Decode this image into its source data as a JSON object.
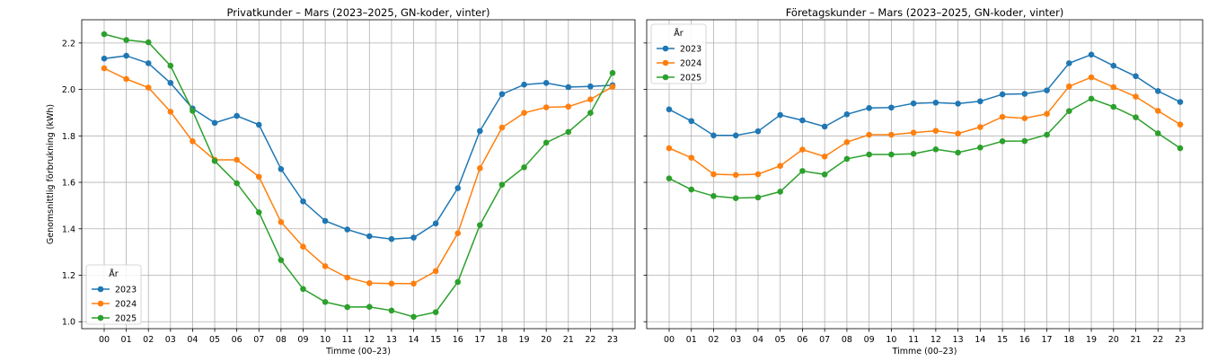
{
  "chart_data": [
    {
      "type": "line",
      "title": "Privatkunder – Mars (2023–2025, GN-koder, vinter)",
      "xlabel": "Timme (00–23)",
      "ylabel": "Genomsnittlig förbrukning (kWh)",
      "categories": [
        "00",
        "01",
        "02",
        "03",
        "04",
        "05",
        "06",
        "07",
        "08",
        "09",
        "10",
        "11",
        "12",
        "13",
        "14",
        "15",
        "16",
        "17",
        "18",
        "19",
        "20",
        "21",
        "22",
        "23"
      ],
      "yticks": [
        "1.0",
        "1.2",
        "1.4",
        "1.6",
        "1.8",
        "2.0",
        "2.2"
      ],
      "ylim": [
        0.97,
        2.3
      ],
      "grid": true,
      "legend": {
        "title": "År",
        "placement": "lower-left"
      },
      "series": [
        {
          "name": "2023",
          "color": "#1f77b4",
          "values": [
            2.133,
            2.145,
            2.113,
            2.028,
            1.918,
            1.856,
            1.886,
            1.848,
            1.657,
            1.518,
            1.434,
            1.397,
            1.368,
            1.356,
            1.362,
            1.423,
            1.575,
            1.821,
            1.98,
            2.021,
            2.028,
            2.01,
            2.013,
            2.018
          ]
        },
        {
          "name": "2024",
          "color": "#ff7f0e",
          "values": [
            2.091,
            2.045,
            2.008,
            1.904,
            1.777,
            1.697,
            1.697,
            1.624,
            1.429,
            1.323,
            1.239,
            1.19,
            1.166,
            1.164,
            1.164,
            1.218,
            1.381,
            1.661,
            1.836,
            1.899,
            1.923,
            1.926,
            1.957,
            2.012
          ]
        },
        {
          "name": "2025",
          "color": "#2ca02c",
          "values": [
            2.238,
            2.213,
            2.203,
            2.102,
            1.908,
            1.692,
            1.596,
            1.471,
            1.265,
            1.141,
            1.085,
            1.063,
            1.064,
            1.048,
            1.021,
            1.041,
            1.171,
            1.416,
            1.59,
            1.665,
            1.771,
            1.817,
            1.899,
            2.071
          ]
        }
      ]
    },
    {
      "type": "line",
      "title": "Företagskunder – Mars (2023–2025, GN-koder, vinter)",
      "xlabel": "Timme (00–23)",
      "ylabel": "",
      "categories": [
        "00",
        "01",
        "02",
        "03",
        "04",
        "05",
        "06",
        "07",
        "08",
        "09",
        "10",
        "11",
        "12",
        "13",
        "14",
        "15",
        "16",
        "17",
        "18",
        "19",
        "20",
        "21",
        "22",
        "23"
      ],
      "ylim": [
        0.97,
        2.3
      ],
      "grid": true,
      "legend": {
        "title": "År",
        "placement": "top-left"
      },
      "series": [
        {
          "name": "2023",
          "color": "#1f77b4",
          "values": [
            1.914,
            1.864,
            1.802,
            1.802,
            1.82,
            1.89,
            1.867,
            1.84,
            1.893,
            1.92,
            1.922,
            1.94,
            1.943,
            1.939,
            1.949,
            1.979,
            1.981,
            1.996,
            2.113,
            2.15,
            2.102,
            2.057,
            1.993,
            1.946
          ]
        },
        {
          "name": "2024",
          "color": "#ff7f0e",
          "values": [
            1.747,
            1.706,
            1.635,
            1.632,
            1.635,
            1.671,
            1.741,
            1.711,
            1.773,
            1.805,
            1.805,
            1.814,
            1.822,
            1.81,
            1.838,
            1.882,
            1.876,
            1.895,
            2.013,
            2.052,
            2.01,
            1.969,
            1.908,
            1.849
          ]
        },
        {
          "name": "2025",
          "color": "#2ca02c",
          "values": [
            1.617,
            1.569,
            1.541,
            1.532,
            1.535,
            1.56,
            1.649,
            1.634,
            1.701,
            1.72,
            1.72,
            1.723,
            1.742,
            1.728,
            1.75,
            1.777,
            1.778,
            1.805,
            1.907,
            1.96,
            1.925,
            1.88,
            1.811,
            1.747
          ]
        }
      ]
    }
  ]
}
